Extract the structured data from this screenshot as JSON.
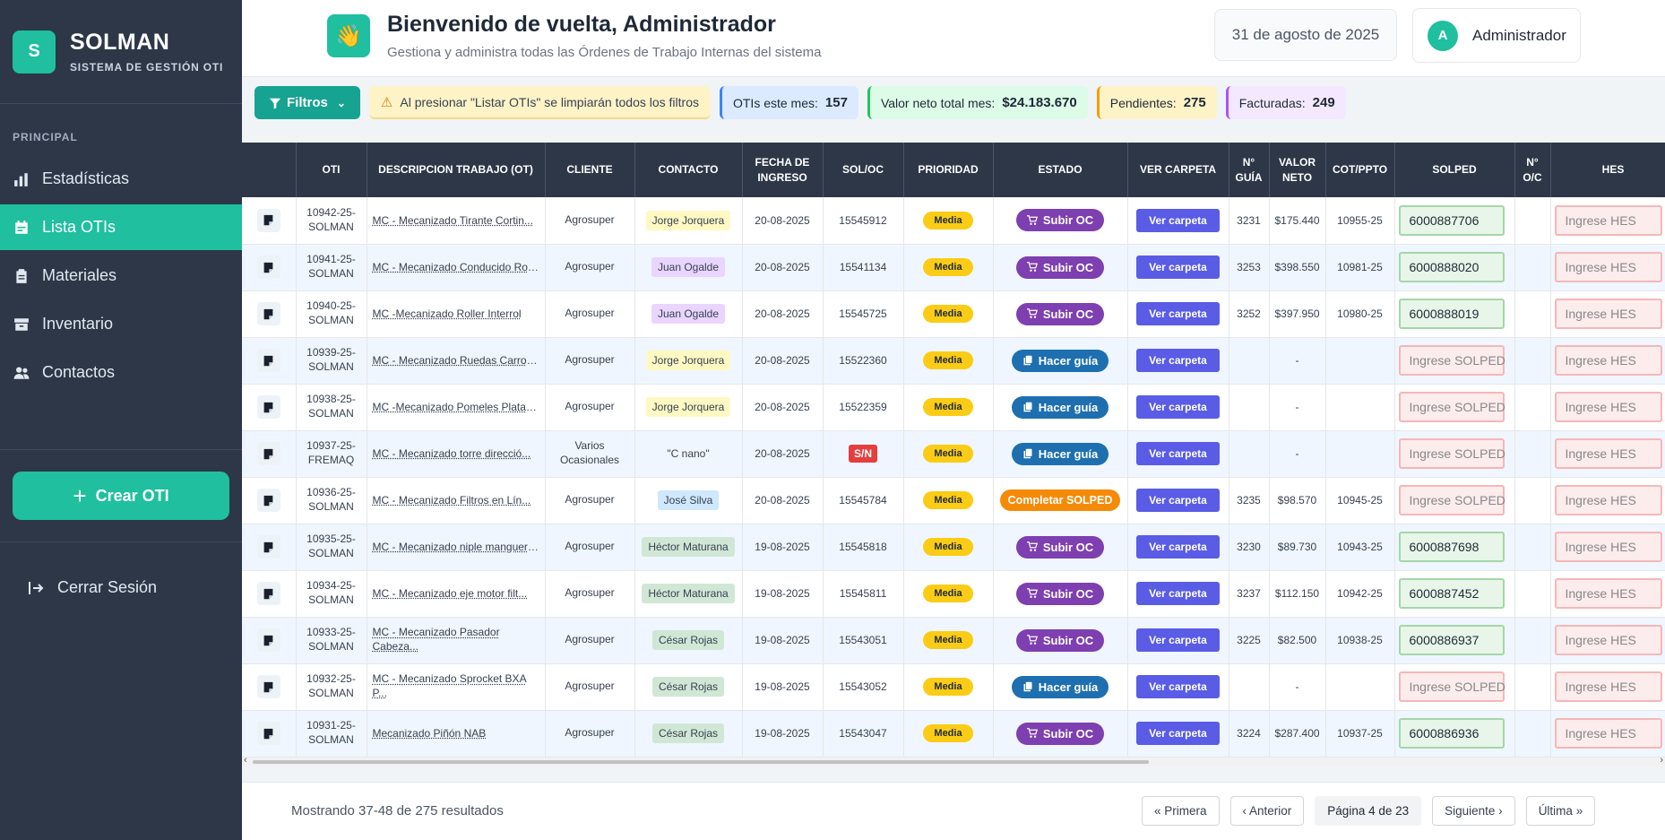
{
  "brand": {
    "logo_letter": "S",
    "name": "SOLMAN",
    "subtitle": "SISTEMA DE GESTIÓN OTI"
  },
  "sidebar": {
    "section_title": "PRINCIPAL",
    "items": [
      {
        "label": "Estadísticas",
        "icon": "bar-chart-icon",
        "active": false
      },
      {
        "label": "Lista OTIs",
        "icon": "calendar-list-icon",
        "active": true
      },
      {
        "label": "Materiales",
        "icon": "clipboard-icon",
        "active": false
      },
      {
        "label": "Inventario",
        "icon": "box-archive-icon",
        "active": false
      },
      {
        "label": "Contactos",
        "icon": "users-icon",
        "active": false
      }
    ],
    "create_button": "Crear OTI",
    "logout": "Cerrar Sesión"
  },
  "header": {
    "wave_icon": "👋",
    "title": "Bienvenido de vuelta, Administrador",
    "subtitle": "Gestiona y administra todas las Órdenes de Trabajo Internas del sistema",
    "date": "31 de agosto de 2025",
    "user_initial": "A",
    "user_name": "Administrador"
  },
  "filterbar": {
    "filter_button": "Filtros",
    "warning": "Al presionar \"Listar OTIs\" se limpiarán todos los filtros",
    "stats": [
      {
        "label": "OTIs este mes:",
        "value": "157"
      },
      {
        "label": "Valor neto total mes:",
        "value": "$24.183.670"
      },
      {
        "label": "Pendientes:",
        "value": "275"
      },
      {
        "label": "Facturadas:",
        "value": "249"
      }
    ]
  },
  "table": {
    "columns": [
      "",
      "OTI",
      "DESCRIPCION TRABAJO (OT)",
      "CLIENTE",
      "CONTACTO",
      "FECHA DE INGRESO",
      "SOL/OC",
      "PRIORIDAD",
      "ESTADO",
      "VER CARPETA",
      "N° GUÍA",
      "VALOR NETO",
      "COT/PPTO",
      "SOLPED",
      "N° O/C",
      "HES"
    ],
    "ver_carpeta_label": "Ver carpeta",
    "solped_placeholder": "Ingrese SOLPED",
    "hes_placeholder": "Ingrese HES",
    "rows": [
      {
        "oti": "10942-25-SOLMAN",
        "desc": "MC - Mecanizado Tirante Cortin...",
        "cliente": "Agrosuper",
        "contacto": "Jorge Jorquera",
        "contact_color": "yellow",
        "fecha": "20-08-2025",
        "soloc": "15545912",
        "soloc_sn": false,
        "prioridad": "Media",
        "estado": "Subir OC",
        "estado_type": "purple",
        "guia": "3231",
        "valor": "$175.440",
        "cot": "10955-25",
        "solped": "6000887706",
        "oc": "",
        "hes": ""
      },
      {
        "oti": "10941-25-SOLMAN",
        "desc": "MC - Mecanizado Conducido Roll...",
        "cliente": "Agrosuper",
        "contacto": "Juan Ogalde",
        "contact_color": "purple",
        "fecha": "20-08-2025",
        "soloc": "15541134",
        "soloc_sn": false,
        "prioridad": "Media",
        "estado": "Subir OC",
        "estado_type": "purple",
        "guia": "3253",
        "valor": "$398.550",
        "cot": "10981-25",
        "solped": "6000888020",
        "oc": "",
        "hes": ""
      },
      {
        "oti": "10940-25-SOLMAN",
        "desc": "MC -Mecanizado Roller Interrol",
        "cliente": "Agrosuper",
        "contacto": "Juan Ogalde",
        "contact_color": "purple",
        "fecha": "20-08-2025",
        "soloc": "15545725",
        "soloc_sn": false,
        "prioridad": "Media",
        "estado": "Subir OC",
        "estado_type": "purple",
        "guia": "3252",
        "valor": "$397.950",
        "cot": "10980-25",
        "solped": "6000888019",
        "oc": "",
        "hes": ""
      },
      {
        "oti": "10939-25-SOLMAN",
        "desc": "MC - Mecanizado Ruedas Carros ...",
        "cliente": "Agrosuper",
        "contacto": "Jorge Jorquera",
        "contact_color": "yellow",
        "fecha": "20-08-2025",
        "soloc": "15522360",
        "soloc_sn": false,
        "prioridad": "Media",
        "estado": "Hacer guía",
        "estado_type": "blue",
        "guia": "",
        "valor": "-",
        "cot": "",
        "solped": "",
        "oc": "",
        "hes": ""
      },
      {
        "oti": "10938-25-SOLMAN",
        "desc": "MC -Mecanizado Pomeles Platafo...",
        "cliente": "Agrosuper",
        "contacto": "Jorge Jorquera",
        "contact_color": "yellow",
        "fecha": "20-08-2025",
        "soloc": "15522359",
        "soloc_sn": false,
        "prioridad": "Media",
        "estado": "Hacer guía",
        "estado_type": "blue",
        "guia": "",
        "valor": "-",
        "cot": "",
        "solped": "",
        "oc": "",
        "hes": ""
      },
      {
        "oti": "10937-25-FREMAQ",
        "desc": "MC - Mecanizado torre direcció...",
        "cliente": "Varios Ocasionales",
        "contacto": "\"C nano\"",
        "contact_color": "none",
        "fecha": "20-08-2025",
        "soloc": "S/N",
        "soloc_sn": true,
        "prioridad": "Media",
        "estado": "Hacer guía",
        "estado_type": "blue",
        "guia": "",
        "valor": "-",
        "cot": "",
        "solped": "",
        "oc": "",
        "hes": ""
      },
      {
        "oti": "10936-25-SOLMAN",
        "desc": "MC - Mecanizado Filtros en Lín...",
        "cliente": "Agrosuper",
        "contacto": "José Silva",
        "contact_color": "blue",
        "fecha": "20-08-2025",
        "soloc": "15545784",
        "soloc_sn": false,
        "prioridad": "Media",
        "estado": "Completar SOLPED",
        "estado_type": "orange",
        "guia": "3235",
        "valor": "$98.570",
        "cot": "10945-25",
        "solped": "",
        "oc": "",
        "hes": ""
      },
      {
        "oti": "10935-25-SOLMAN",
        "desc": "MC - Mecanizado niple manguera...",
        "cliente": "Agrosuper",
        "contacto": "Héctor Maturana",
        "contact_color": "green",
        "fecha": "19-08-2025",
        "soloc": "15545818",
        "soloc_sn": false,
        "prioridad": "Media",
        "estado": "Subir OC",
        "estado_type": "purple",
        "guia": "3230",
        "valor": "$89.730",
        "cot": "10943-25",
        "solped": "6000887698",
        "oc": "",
        "hes": ""
      },
      {
        "oti": "10934-25-SOLMAN",
        "desc": "MC - Mecanizado eje motor filt...",
        "cliente": "Agrosuper",
        "contacto": "Héctor Maturana",
        "contact_color": "green",
        "fecha": "19-08-2025",
        "soloc": "15545811",
        "soloc_sn": false,
        "prioridad": "Media",
        "estado": "Subir OC",
        "estado_type": "purple",
        "guia": "3237",
        "valor": "$112.150",
        "cot": "10942-25",
        "solped": "6000887452",
        "oc": "",
        "hes": ""
      },
      {
        "oti": "10933-25-SOLMAN",
        "desc": "MC - Mecanizado Pasador Cabeza...",
        "desc_wrap": true,
        "cliente": "Agrosuper",
        "contacto": "César Rojas",
        "contact_color": "green",
        "fecha": "19-08-2025",
        "soloc": "15543051",
        "soloc_sn": false,
        "prioridad": "Media",
        "estado": "Subir OC",
        "estado_type": "purple",
        "guia": "3225",
        "valor": "$82.500",
        "cot": "10938-25",
        "solped": "6000886937",
        "oc": "",
        "hes": ""
      },
      {
        "oti": "10932-25-SOLMAN",
        "desc": "MC - Mecanizado Sprocket BXA P...",
        "desc_wrap": true,
        "cliente": "Agrosuper",
        "contacto": "César Rojas",
        "contact_color": "green",
        "fecha": "19-08-2025",
        "soloc": "15543052",
        "soloc_sn": false,
        "prioridad": "Media",
        "estado": "Hacer guía",
        "estado_type": "blue",
        "guia": "",
        "valor": "-",
        "cot": "",
        "solped": "",
        "oc": "",
        "hes": ""
      },
      {
        "oti": "10931-25-SOLMAN",
        "desc": "Mecanizado Piñón NAB",
        "cliente": "Agrosuper",
        "contacto": "César Rojas",
        "contact_color": "green",
        "fecha": "19-08-2025",
        "soloc": "15543047",
        "soloc_sn": false,
        "prioridad": "Media",
        "estado": "Subir OC",
        "estado_type": "purple",
        "guia": "3224",
        "valor": "$287.400",
        "cot": "10937-25",
        "solped": "6000886936",
        "oc": "",
        "hes": ""
      }
    ]
  },
  "footer": {
    "results": "Mostrando 37-48 de 275 resultados",
    "first": "« Primera",
    "prev": "‹ Anterior",
    "current": "Página 4 de 23",
    "next": "Siguiente ›",
    "last": "Última »"
  },
  "colors": {
    "accent": "#1fbf9f",
    "sidebar": "#2d3748",
    "estado_purple": "#7e3fb0",
    "estado_blue": "#1e6fb0",
    "estado_orange": "#f58a07",
    "ver_carpeta": "#5a5ce6"
  }
}
